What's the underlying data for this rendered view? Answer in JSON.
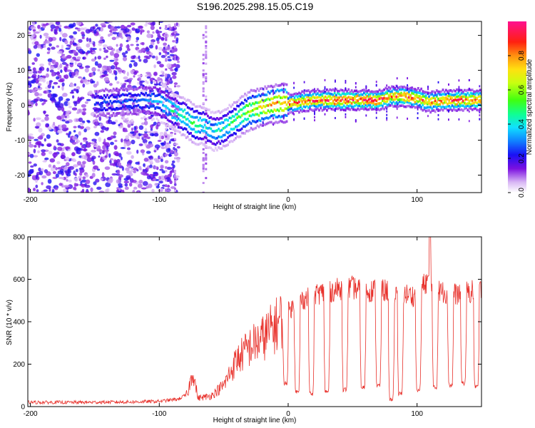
{
  "title": "S196.2025.298.15.05.C19",
  "colors": {
    "snr_line": "#e8302a",
    "axis": "#000000"
  },
  "chart_data": [
    {
      "type": "heatmap",
      "title": "S196.2025.298.15.05.C19",
      "xlabel": "Height of straight line (km)",
      "ylabel": "Frequency (Hz)",
      "xlim": [
        -202,
        150
      ],
      "ylim": [
        -25,
        24
      ],
      "xticks": [
        -200,
        -100,
        0,
        100
      ],
      "xtick_labels": [
        "-200",
        "-100",
        "0",
        "100"
      ],
      "yticks": [
        -20,
        -10,
        0,
        10,
        20
      ],
      "ytick_labels": [
        "-20",
        "-10",
        "0",
        "10",
        "20"
      ],
      "colorbar": {
        "label": "Normalized spectral amplitude",
        "range": [
          0,
          1
        ],
        "ticks": [
          0.0,
          0.2,
          0.4,
          0.6,
          0.8
        ],
        "tick_labels": [
          "0.0",
          "0.2",
          "0.4",
          "0.6",
          "0.8"
        ]
      },
      "ridge": {
        "x": [
          -150,
          -110,
          -100,
          -90,
          -80,
          -72,
          -65,
          -58,
          -52,
          -45,
          -38,
          -30,
          -20,
          -10,
          0,
          10,
          20,
          30,
          40,
          50,
          60,
          70,
          80,
          90,
          100,
          110,
          120,
          130,
          140,
          150
        ],
        "freq": [
          0.5,
          1.5,
          1.0,
          -1.5,
          -3.5,
          -5.5,
          -6.0,
          -7.5,
          -7.0,
          -5.5,
          -3.5,
          -1.5,
          -0.5,
          0.5,
          0.5,
          1.0,
          1.5,
          1.5,
          1.5,
          1.5,
          1.5,
          1.5,
          2.5,
          2.5,
          2.0,
          1.0,
          1.5,
          1.5,
          1.5,
          1.5
        ],
        "amplitude": [
          0.25,
          0.3,
          0.35,
          0.45,
          0.5,
          0.5,
          0.45,
          0.4,
          0.45,
          0.5,
          0.55,
          0.65,
          0.75,
          0.8,
          0.85,
          0.9,
          0.9,
          0.95,
          0.95,
          0.95,
          0.95,
          0.95,
          0.9,
          0.9,
          0.9,
          0.85,
          0.9,
          0.9,
          0.9,
          0.9
        ]
      },
      "noise_region": {
        "x_from": -202,
        "x_to": -85,
        "amplitude": 0.15
      }
    },
    {
      "type": "line",
      "xlabel": "Height of straight line (km)",
      "ylabel": "SNR (10 * v/v)",
      "xlim": [
        -202,
        150
      ],
      "ylim": [
        0,
        800
      ],
      "xticks": [
        -200,
        -100,
        0,
        100
      ],
      "xtick_labels": [
        "-200",
        "-100",
        "0",
        "100"
      ],
      "yticks": [
        0,
        200,
        400,
        600,
        800
      ],
      "ytick_labels": [
        "0",
        "200",
        "400",
        "600",
        "800"
      ],
      "envelope": {
        "x": [
          -202,
          -160,
          -120,
          -100,
          -85,
          -78,
          -74,
          -70,
          -60,
          -50,
          -40,
          -30,
          -20,
          -10,
          0,
          10,
          20,
          30,
          40,
          50,
          60,
          70,
          80,
          90,
          100,
          108,
          110,
          120,
          130,
          140,
          150
        ],
        "snr": [
          20,
          20,
          22,
          25,
          35,
          60,
          170,
          40,
          50,
          100,
          220,
          280,
          320,
          380,
          450,
          500,
          530,
          540,
          555,
          560,
          545,
          550,
          545,
          530,
          520,
          600,
          560,
          540,
          530,
          540,
          550
        ]
      },
      "dropouts": [
        {
          "x": -2,
          "snr": 110
        },
        {
          "x": 7,
          "snr": 70
        },
        {
          "x": 18,
          "snr": 60
        },
        {
          "x": 30,
          "snr": 70
        },
        {
          "x": 44,
          "snr": 80
        },
        {
          "x": 58,
          "snr": 90
        },
        {
          "x": 70,
          "snr": 100
        },
        {
          "x": 80,
          "snr": 30
        },
        {
          "x": 87,
          "snr": 60
        },
        {
          "x": 101,
          "snr": 80
        },
        {
          "x": 114,
          "snr": 90
        },
        {
          "x": 126,
          "snr": 100
        },
        {
          "x": 136,
          "snr": 110
        },
        {
          "x": 146,
          "snr": 95
        }
      ],
      "peak": {
        "x": 110,
        "snr": 800
      }
    }
  ]
}
